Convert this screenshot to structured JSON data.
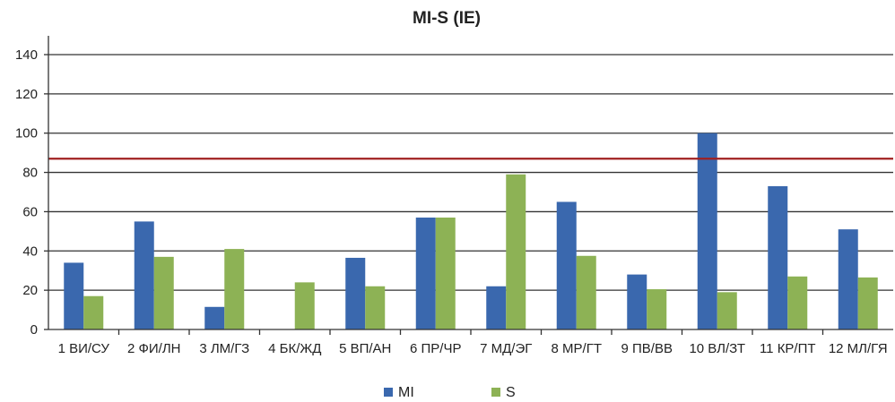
{
  "chart_data": {
    "type": "bar",
    "title": "MI-S (IE)",
    "xlabel": "",
    "ylabel": "",
    "ylim": [
      0,
      140
    ],
    "yticks": [
      "0",
      "20",
      "40",
      "60",
      "80",
      "100",
      "120",
      "140"
    ],
    "grid": true,
    "legend_position": "bottom",
    "categories": [
      "1 ВИ/СУ",
      "2 ФИ/ЛН",
      "3 ЛМ/ГЗ",
      "4 БК/ЖД",
      "5 ВП/АН",
      "6 ПР/ЧР",
      "7 МД/ЭГ",
      "8 МР/ГТ",
      "9 ПВ/ВВ",
      "10 ВЛ/ЗТ",
      "11 КР/ПТ",
      "12 МЛ/ГЯ"
    ],
    "series": [
      {
        "name": "MI",
        "color": "#3A68AE",
        "values": [
          34,
          55,
          11.5,
          0,
          36.5,
          57,
          22,
          65,
          28,
          100,
          73,
          51
        ]
      },
      {
        "name": "S",
        "color": "#8DB255",
        "values": [
          17,
          37,
          41,
          24,
          22,
          57,
          79,
          37.5,
          20.5,
          19,
          27,
          26.5
        ]
      }
    ],
    "reference_line": {
      "value": 87,
      "color": "#A02020"
    }
  }
}
